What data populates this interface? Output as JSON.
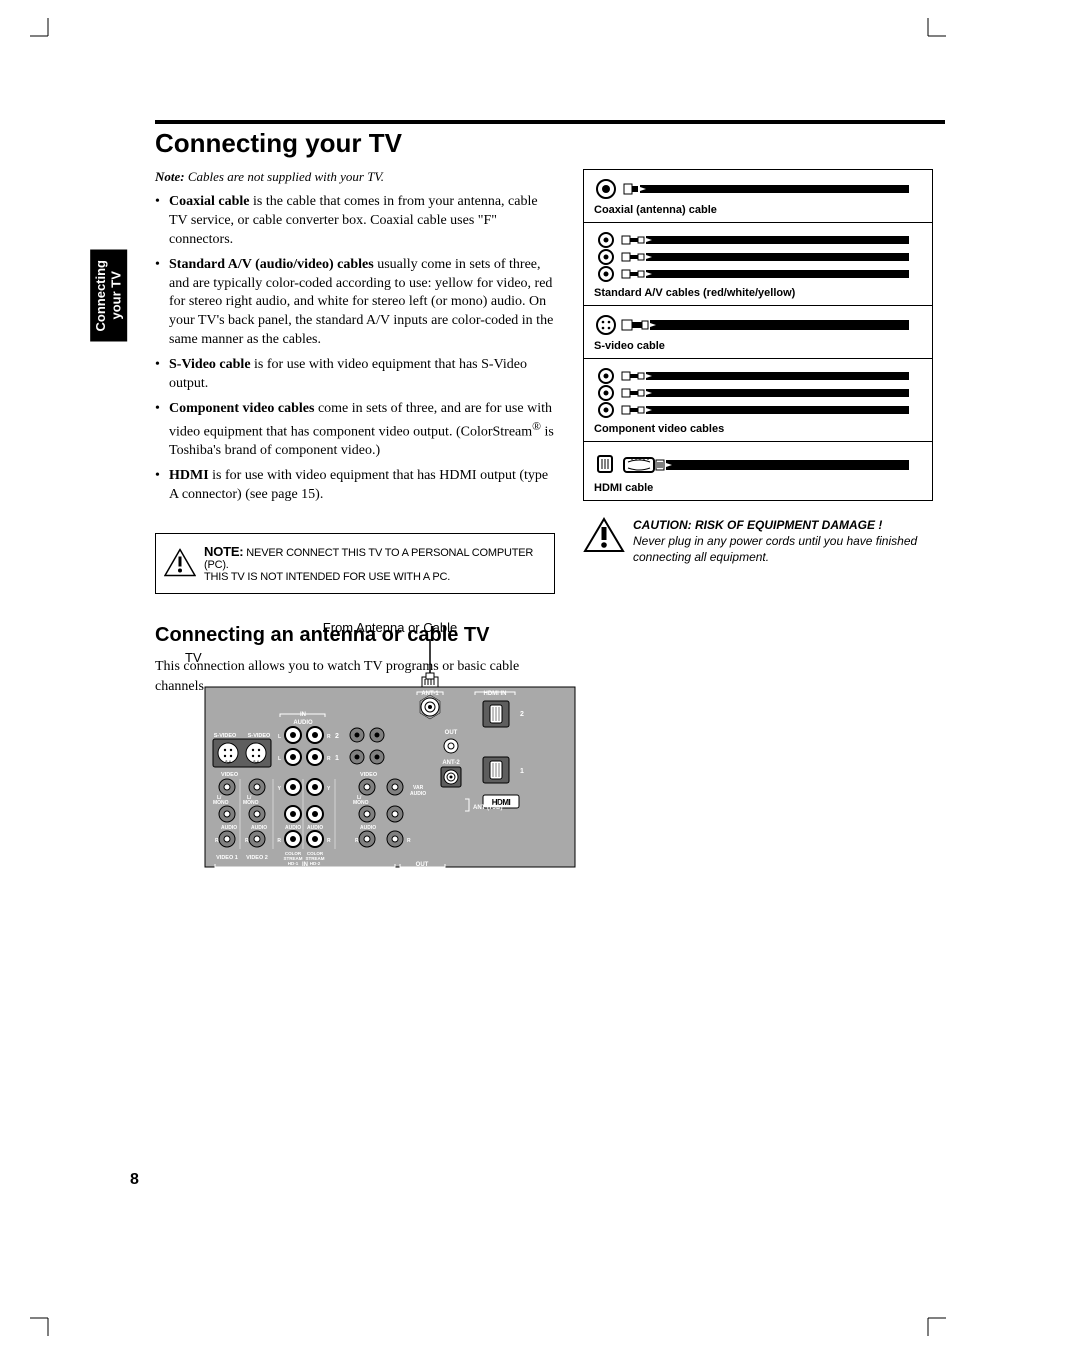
{
  "page_number": "8",
  "side_tab": "Connecting\nyour TV",
  "title": "Connecting your TV",
  "note_line_bold": "Note:",
  "note_line_text": " Cables are not supplied with your TV.",
  "bullets": {
    "coaxial": {
      "bold": "Coaxial cable",
      "text": " is the cable that comes in from your antenna, cable TV service, or cable converter box. Coaxial cable uses \"F\" connectors."
    },
    "standard_av": {
      "bold": "Standard A/V (audio/video) cables",
      "text": " usually come in sets of three, and are typically color-coded according to use: yellow for video, red for stereo right audio, and white for stereo left (or mono) audio. On your TV's back panel, the standard A/V inputs are color-coded in the same manner as the cables."
    },
    "svideo": {
      "bold": "S-Video cable",
      "text": " is for use with video equipment that has S-Video output."
    },
    "component": {
      "bold": "Component video cables",
      "text_a": " come in sets of three, and are for use with video equipment that has component video output. (ColorStream",
      "reg": "®",
      "text_b": " is Toshiba's brand of component video.)"
    },
    "hdmi": {
      "bold": "HDMI",
      "text": " is for use with video equipment that has HDMI output (type A connector) (see page 15)."
    }
  },
  "note_box": {
    "bold": "NOTE:",
    "line1": " NEVER CONNECT THIS TV TO A PERSONAL COMPUTER (PC).",
    "line2": "THIS TV IS NOT INTENDED FOR USE WITH A PC."
  },
  "subtitle": "Connecting an antenna or cable TV",
  "body_sub": "This connection allows you to watch TV programs or basic cable channels.",
  "cable_labels": {
    "coaxial": "Coaxial (antenna) cable",
    "standard": "Standard A/V cables (red/white/yellow)",
    "svideo": "S-video cable",
    "component": "Component video cables",
    "hdmi": "HDMI cable"
  },
  "caution": {
    "head": "CAUTION:  RISK OF EQUIPMENT DAMAGE !",
    "body": "Never plug in any power cords until you have finished connecting all equipment."
  },
  "tv_diagram": {
    "top_label": "From Antenna or Cable",
    "left_label": "TV",
    "panel_labels": {
      "ant1": "ANT-1",
      "hdmi_in": "HDMI IN",
      "in": "IN",
      "audio": "AUDIO",
      "out": "OUT",
      "svideo": "S-VIDEO",
      "ant2": "ANT-2",
      "video": "VIDEO",
      "lmono": "L/\nMONO",
      "var_audio": "VAR\nAUDIO",
      "ant75": "ANT (75Ω)",
      "r": "R",
      "video1": "VIDEO 1",
      "video2": "VIDEO 2",
      "cs1": "COLOR\nSTREAM\nHD-1",
      "cs2": "COLOR\nSTREAM\nHD-2",
      "n1": "1",
      "n2": "2",
      "hdmi_logo": "HDMI"
    }
  },
  "colors": {
    "black": "#000000",
    "white": "#ffffff",
    "panel_gray": "#a9a9a9",
    "dark_gray": "#5e5e5e",
    "mid_gray": "#808080",
    "light_stroke": "#444444"
  }
}
